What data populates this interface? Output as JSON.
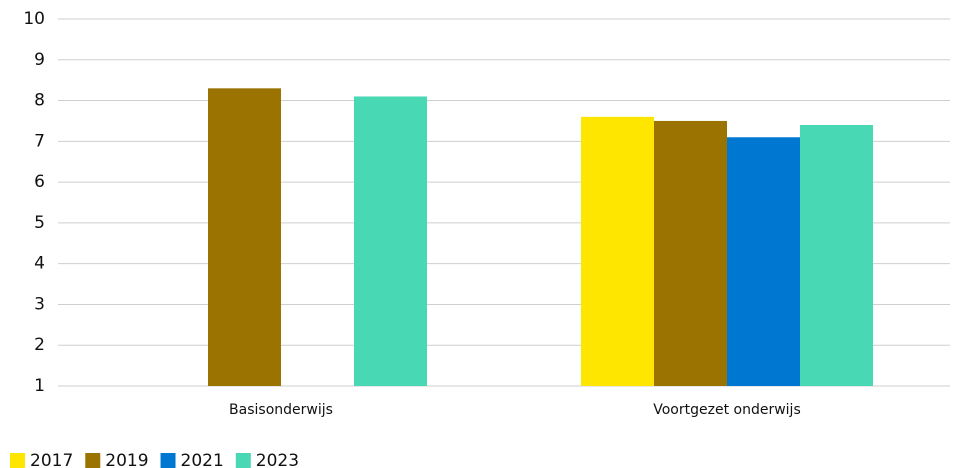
{
  "chart_data": {
    "type": "bar",
    "categories": [
      "Basisonderwijs",
      "Voortgezet onderwijs"
    ],
    "series": [
      {
        "name": "2017",
        "color": "#ffe600",
        "values": [
          null,
          7.6
        ]
      },
      {
        "name": "2019",
        "color": "#9a7300",
        "values": [
          8.3,
          7.5
        ]
      },
      {
        "name": "2021",
        "color": "#0078d2",
        "values": [
          null,
          7.1
        ]
      },
      {
        "name": "2023",
        "color": "#48d8b4",
        "values": [
          8.1,
          7.4
        ]
      }
    ],
    "ylim": [
      1,
      10
    ],
    "yticks": [
      1,
      2,
      3,
      4,
      5,
      6,
      7,
      8,
      9,
      10
    ],
    "grid": true,
    "legend": "bottom-left"
  }
}
